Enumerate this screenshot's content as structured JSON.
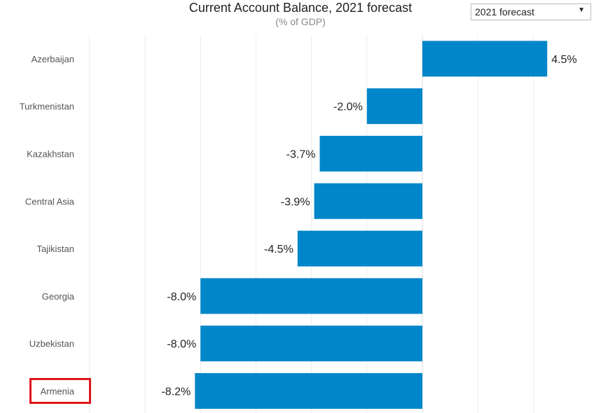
{
  "chart_data": {
    "type": "bar",
    "orientation": "horizontal",
    "title": "Current Account Balance, 2021 forecast",
    "subtitle": "(% of GDP)",
    "categories": [
      "Azerbaijan",
      "Turkmenistan",
      "Kazakhstan",
      "Central Asia",
      "Tajikistan",
      "Georgia",
      "Uzbekistan",
      "Armenia"
    ],
    "values": [
      4.5,
      -2.0,
      -3.7,
      -3.9,
      -4.5,
      -8.0,
      -8.0,
      -8.2
    ],
    "value_labels": [
      "4.5%",
      "-2.0%",
      "-3.7%",
      "-3.9%",
      "-4.5%",
      "-8.0%",
      "-8.0%",
      "-8.2%"
    ],
    "xlim": [
      -12,
      6
    ],
    "grid": true,
    "bar_color": "#0086c9",
    "highlighted_category": "Armenia",
    "highlight_color": "#e0151a"
  },
  "controls": {
    "year_select": {
      "selected": "2021 forecast",
      "arrow": "▼"
    }
  }
}
